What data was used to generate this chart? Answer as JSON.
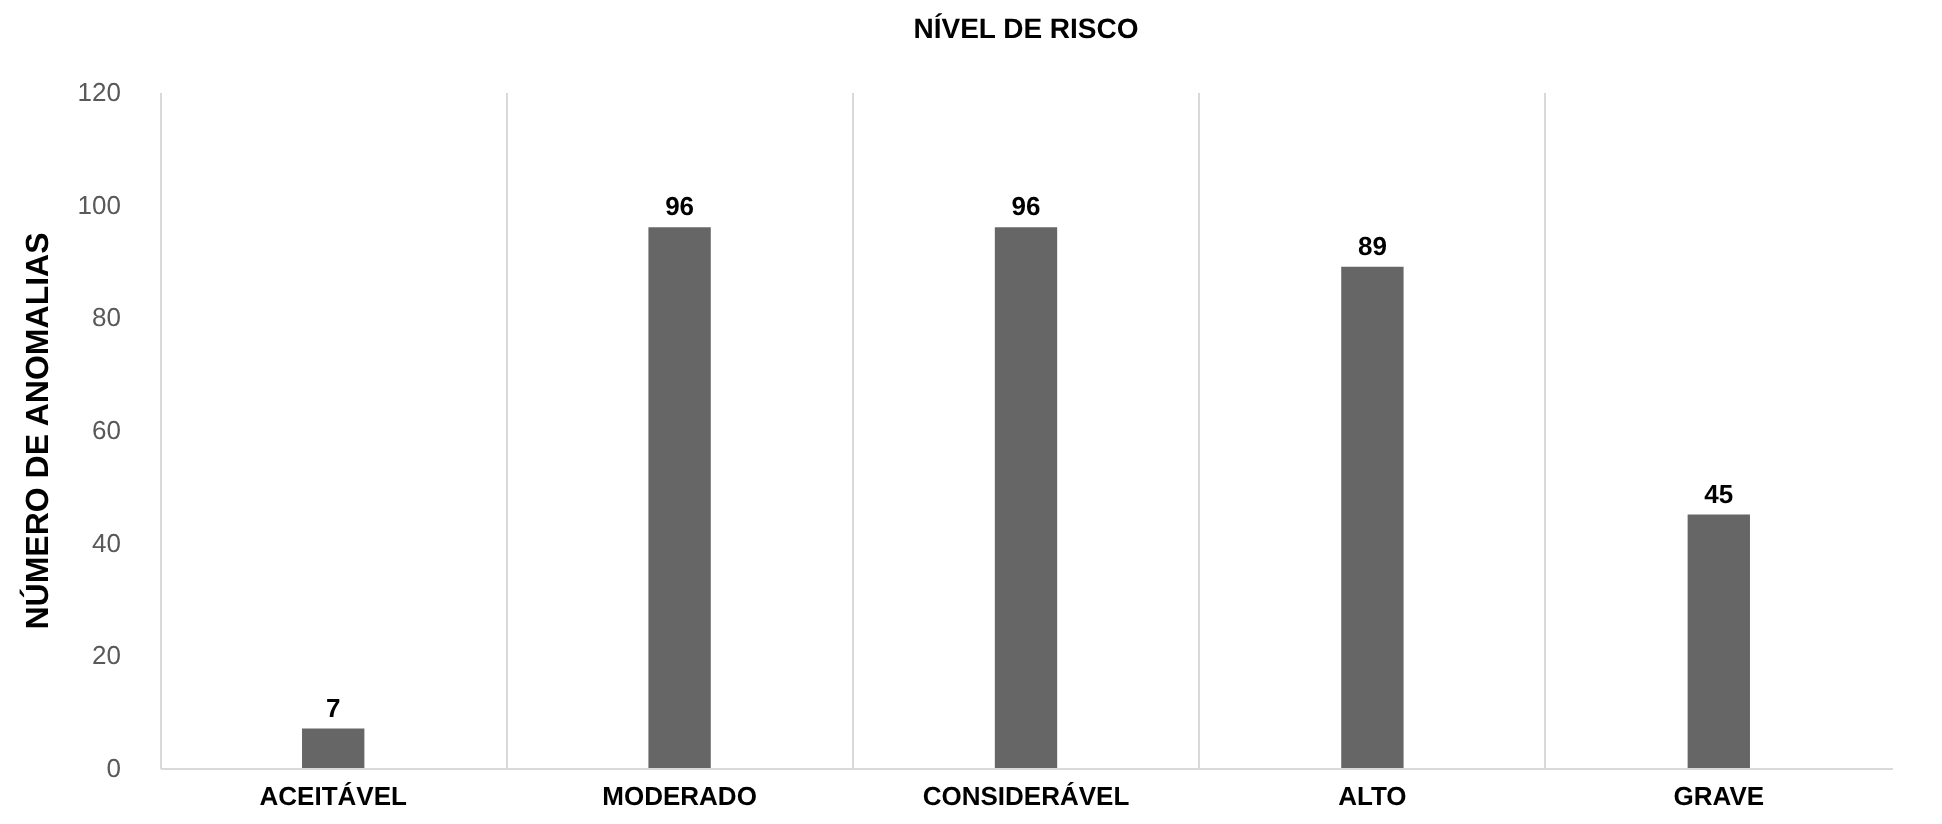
{
  "chart_data": {
    "type": "bar",
    "title": "NÍVEL DE RISCO",
    "ylabel": "NÚMERO DE ANOMALIAS",
    "categories": [
      "ACEITÁVEL",
      "MODERADO",
      "CONSIDERÁVEL",
      "ALTO",
      "GRAVE"
    ],
    "values": [
      7,
      96,
      96,
      89,
      45
    ],
    "color": "#666666",
    "ylim": [
      0,
      120
    ],
    "yticks": [
      0,
      20,
      40,
      60,
      80,
      100,
      120
    ],
    "grid": "x",
    "data_labels": true
  }
}
